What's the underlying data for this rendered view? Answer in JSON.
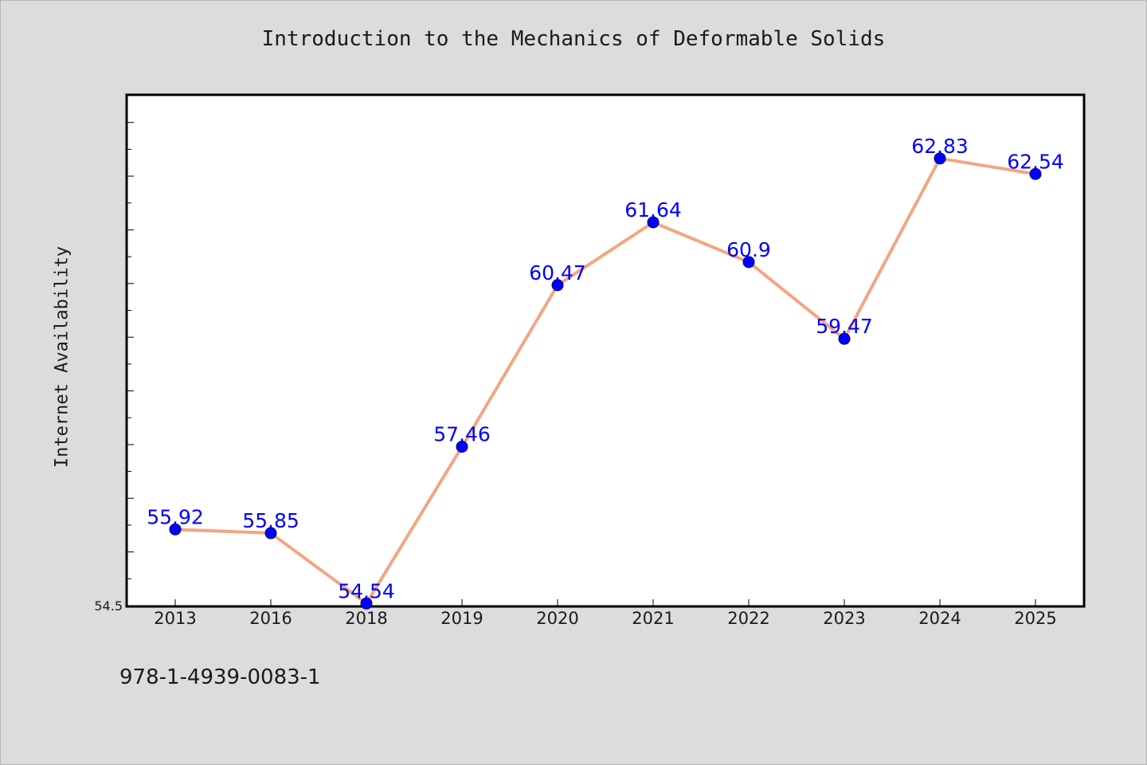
{
  "page": {
    "isbn": "978-1-4939-0083-1"
  },
  "chart_data": {
    "type": "line",
    "title": "Introduction to the Mechanics of Deformable Solids",
    "xlabel": "",
    "ylabel": "Internet Availability",
    "categories": [
      "2013",
      "2016",
      "2018",
      "2019",
      "2020",
      "2021",
      "2022",
      "2023",
      "2024",
      "2025"
    ],
    "series": [
      {
        "values": [
          55.92,
          55.85,
          54.54,
          57.46,
          60.47,
          61.64,
          60.9,
          59.47,
          62.83,
          62.54
        ],
        "data_labels": [
          "55.92",
          "55.85",
          "54.54",
          "57.46",
          "60.47",
          "61.64",
          "60.9",
          "59.47",
          "62.83",
          "62.54"
        ]
      }
    ],
    "ylim": [
      54.5,
      64.0
    ],
    "y_tick_labels": [
      "54.5"
    ],
    "grid": false,
    "colors": {
      "line": "#f4a582",
      "marker": "#0000ff",
      "data_label": "#0000ff",
      "plot_background": "#ffffff",
      "figure_background": "#dcdcdc"
    }
  }
}
